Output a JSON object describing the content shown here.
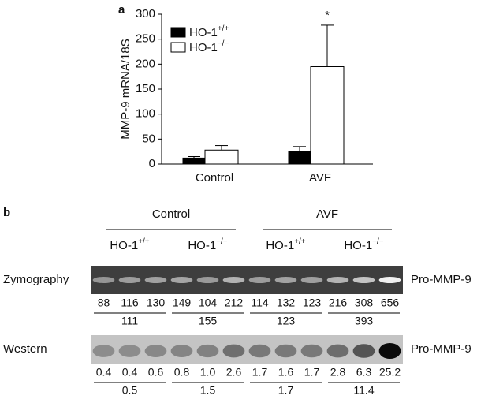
{
  "chart_data": {
    "type": "bar",
    "panel_label": "a",
    "y_label": "MMP-9 mRNA/18S",
    "categories": [
      "Control",
      "AVF"
    ],
    "series": [
      {
        "name": "HO-1",
        "genotype": "+/+",
        "color": "#000000",
        "values": [
          12,
          25
        ],
        "errors": [
          3,
          10
        ]
      },
      {
        "name": "HO-1",
        "genotype": "−/−",
        "color": "#ffffff",
        "values": [
          28,
          195
        ],
        "errors": [
          9,
          83
        ]
      }
    ],
    "ylim": [
      0,
      300
    ],
    "yticks": [
      0,
      50,
      100,
      150,
      200,
      250,
      300
    ],
    "annotation": "*"
  },
  "panel_b": {
    "panel_label": "b",
    "groups": [
      "Control",
      "AVF"
    ],
    "subgroups": [
      {
        "name": "HO-1",
        "genotype": "+/+"
      },
      {
        "name": "HO-1",
        "genotype": "−/−"
      },
      {
        "name": "HO-1",
        "genotype": "+/+"
      },
      {
        "name": "HO-1",
        "genotype": "−/−"
      }
    ],
    "rows": [
      {
        "label": "Zymography",
        "target": "Pro-MMP-9",
        "values": [
          "88",
          "116",
          "130",
          "149",
          "104",
          "212",
          "114",
          "132",
          "123",
          "216",
          "308",
          "656"
        ],
        "means": [
          "111",
          "155",
          "123",
          "393"
        ]
      },
      {
        "label": "Western",
        "target": "Pro-MMP-9",
        "values": [
          "0.4",
          "0.4",
          "0.6",
          "0.8",
          "1.0",
          "2.6",
          "1.7",
          "1.6",
          "1.7",
          "2.8",
          "6.3",
          "25.2"
        ],
        "means": [
          "0.5",
          "1.5",
          "1.7",
          "11.4"
        ]
      }
    ]
  }
}
